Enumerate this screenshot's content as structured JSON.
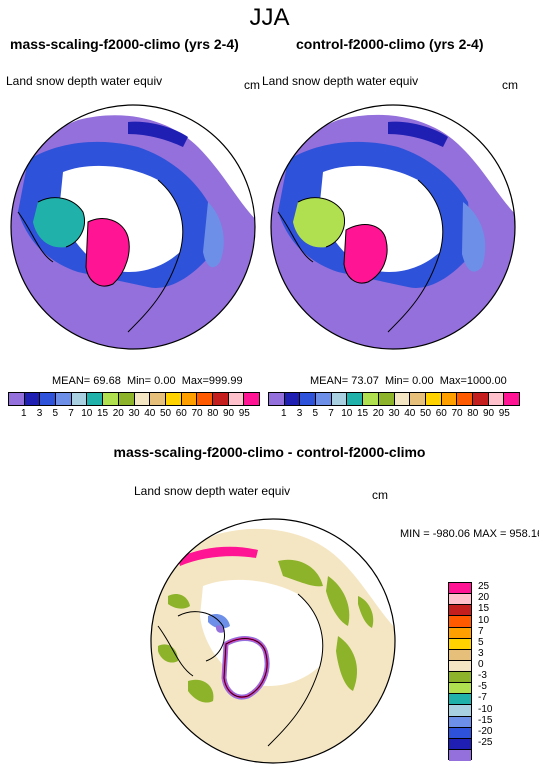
{
  "season_title": "JJA",
  "panels": [
    {
      "title": "mass-scaling-f2000-climo (yrs 2-4)",
      "field": "Land snow depth water equiv",
      "unit": "cm",
      "stats": {
        "mean": "69.68",
        "min": "0.00",
        "max": "999.99"
      }
    },
    {
      "title": "control-f2000-climo (yrs 2-4)",
      "field": "Land snow depth water equiv",
      "unit": "cm",
      "stats": {
        "mean": "73.07",
        "min": "0.00",
        "max": "1000.00"
      }
    }
  ],
  "stat_labels": {
    "mean": "MEAN=",
    "min": "Min=",
    "max": "Max="
  },
  "colorbar_top": {
    "levels": [
      "1",
      "3",
      "5",
      "7",
      "10",
      "15",
      "20",
      "30",
      "40",
      "50",
      "60",
      "70",
      "80",
      "90",
      "95"
    ],
    "colors": [
      "#9370DB",
      "#1F1FB4",
      "#2E52D9",
      "#6D8FE8",
      "#A9D0E0",
      "#20B2AA",
      "#B0E050",
      "#8DB32B",
      "#F5E6C3",
      "#E6C07A",
      "#FFD200",
      "#FFA000",
      "#FF5A00",
      "#C41E1E",
      "#FFC0CB",
      "#FF1493"
    ]
  },
  "difference": {
    "title": "mass-scaling-f2000-climo - control-f2000-climo",
    "field": "Land snow depth water equiv",
    "unit": "cm",
    "minmax": "MIN = -980.06 MAX = 958.16",
    "levels": [
      "25",
      "20",
      "15",
      "10",
      "7",
      "5",
      "3",
      "0",
      "-3",
      "-5",
      "-7",
      "-10",
      "-15",
      "-20",
      "-25"
    ],
    "colors": [
      "#FF1493",
      "#FFC0CB",
      "#C41E1E",
      "#FF5A00",
      "#FFA000",
      "#FFD200",
      "#E6C07A",
      "#F5E6C3",
      "#8DB32B",
      "#B0E050",
      "#20B2AA",
      "#A9D0E0",
      "#6D8FE8",
      "#2E52D9",
      "#1F1FB4",
      "#9370DB"
    ]
  }
}
